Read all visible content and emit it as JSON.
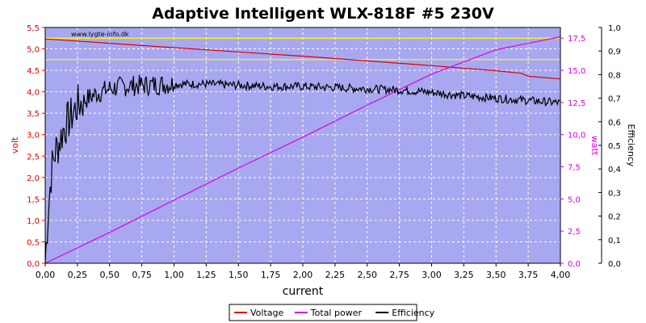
{
  "chart_data": {
    "type": "line",
    "title": "Adaptive Intelligent WLX-818F #5 230V",
    "xlabel": "current",
    "watermark": "www.lygte-info.dk",
    "xlim": [
      0,
      4.0
    ],
    "x_ticks": [
      "0,00",
      "0,25",
      "0,50",
      "0,75",
      "1,00",
      "1,25",
      "1,50",
      "1,75",
      "2,00",
      "2,25",
      "2,50",
      "2,75",
      "3,00",
      "3,25",
      "3,50",
      "3,75",
      "4,00"
    ],
    "y_left": {
      "label": "volt",
      "lim": [
        0,
        5.5
      ],
      "ticks": [
        "0,0",
        "0,5",
        "1,0",
        "1,5",
        "2,0",
        "2,5",
        "3,0",
        "3,5",
        "4,0",
        "4,5",
        "5,0",
        "5,5"
      ],
      "color": "#dd0000"
    },
    "y_right_power": {
      "label": "watt",
      "lim": [
        0,
        18.33
      ],
      "ticks": [
        "0,0",
        "2,5",
        "5,0",
        "7,5",
        "10,0",
        "12,5",
        "15,0",
        "17,5"
      ],
      "color": "#dd00dd"
    },
    "y_right_efficiency": {
      "label": "Efficiency",
      "lim": [
        0,
        1.0
      ],
      "ticks": [
        "0,0",
        "0,1",
        "0,2",
        "0,3",
        "0,4",
        "0,5",
        "0,6",
        "0,7",
        "0,8",
        "0,9",
        "1,0"
      ],
      "color": "#000000"
    },
    "reference_lines_volt": [
      5.25,
      4.75
    ],
    "reference_line_color": "#ffff00",
    "grid": true,
    "plot_background": "#a8a8f0",
    "legend_position": "bottom-center",
    "series": [
      {
        "name": "Voltage",
        "axis": "volt",
        "color": "#dd0000",
        "x": [
          0,
          0.5,
          1.0,
          1.5,
          2.0,
          2.5,
          3.0,
          3.5,
          3.7,
          3.75,
          4.0
        ],
        "values": [
          5.23,
          5.13,
          5.03,
          4.93,
          4.83,
          4.72,
          4.61,
          4.49,
          4.43,
          4.36,
          4.3
        ]
      },
      {
        "name": "Total power",
        "axis": "watt",
        "color": "#dd00dd",
        "x": [
          0,
          0.5,
          1.0,
          1.5,
          2.0,
          2.5,
          3.0,
          3.5,
          4.0
        ],
        "values": [
          0,
          2.4,
          4.9,
          7.4,
          9.8,
          12.3,
          14.7,
          16.6,
          17.6
        ]
      },
      {
        "name": "Efficiency",
        "axis": "efficiency",
        "color": "#000000",
        "x": [
          0,
          0.02,
          0.05,
          0.08,
          0.1,
          0.15,
          0.2,
          0.25,
          0.3,
          0.4,
          0.5,
          0.6,
          0.75,
          1.0,
          1.25,
          1.5,
          1.75,
          2.0,
          2.25,
          2.5,
          2.75,
          3.0,
          3.25,
          3.5,
          3.75,
          4.0
        ],
        "values": [
          0.0,
          0.2,
          0.4,
          0.48,
          0.5,
          0.58,
          0.62,
          0.67,
          0.69,
          0.72,
          0.74,
          0.75,
          0.755,
          0.76,
          0.76,
          0.755,
          0.75,
          0.75,
          0.745,
          0.74,
          0.735,
          0.725,
          0.71,
          0.7,
          0.69,
          0.68
        ]
      }
    ]
  }
}
